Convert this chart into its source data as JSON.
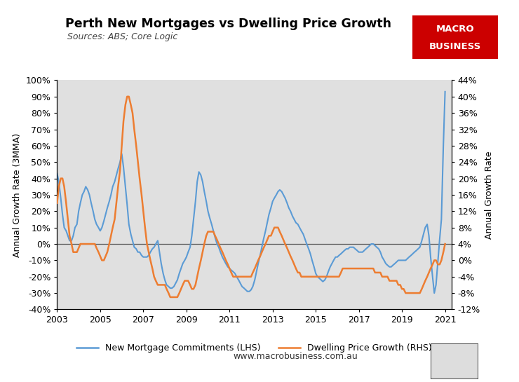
{
  "title": "Perth New Mortgages vs Dwelling Price Growth",
  "subtitle": "Sources: ABS; Core Logic",
  "ylabel_left": "Annual Growth Rate (3MMA)",
  "ylabel_right": "Annual Growth Rate",
  "ylim_left": [
    -40,
    100
  ],
  "ylim_right": [
    -12,
    44
  ],
  "yticks_left": [
    -40,
    -30,
    -20,
    -10,
    0,
    10,
    20,
    30,
    40,
    50,
    60,
    70,
    80,
    90,
    100
  ],
  "yticks_right": [
    -12,
    -8,
    -4,
    0,
    4,
    8,
    12,
    16,
    20,
    24,
    28,
    32,
    36,
    40,
    44
  ],
  "lhs_color": "#5B9BD5",
  "rhs_color": "#ED7D31",
  "background_color": "#E0E0E0",
  "zero_line_color": "#555555",
  "website": "www.macrobusiness.com.au",
  "legend_lhs": "New Mortgage Commitments (LHS)",
  "legend_rhs": "Dwelling Price Growth (RHS)",
  "macro_box_color": "#CC0000",
  "xticks": [
    2003,
    2005,
    2007,
    2009,
    2011,
    2013,
    2015,
    2017,
    2019,
    2021
  ],
  "xlim": [
    2003,
    2021.3
  ],
  "lhs_x": [
    2003.0,
    2003.08,
    2003.17,
    2003.25,
    2003.33,
    2003.42,
    2003.5,
    2003.58,
    2003.67,
    2003.75,
    2003.83,
    2003.92,
    2004.0,
    2004.08,
    2004.17,
    2004.25,
    2004.33,
    2004.42,
    2004.5,
    2004.58,
    2004.67,
    2004.75,
    2004.83,
    2004.92,
    2005.0,
    2005.08,
    2005.17,
    2005.25,
    2005.33,
    2005.42,
    2005.5,
    2005.58,
    2005.67,
    2005.75,
    2005.83,
    2005.92,
    2006.0,
    2006.08,
    2006.17,
    2006.25,
    2006.33,
    2006.42,
    2006.5,
    2006.58,
    2006.67,
    2006.75,
    2006.83,
    2006.92,
    2007.0,
    2007.08,
    2007.17,
    2007.25,
    2007.33,
    2007.42,
    2007.5,
    2007.58,
    2007.67,
    2007.75,
    2007.83,
    2007.92,
    2008.0,
    2008.08,
    2008.17,
    2008.25,
    2008.33,
    2008.42,
    2008.5,
    2008.58,
    2008.67,
    2008.75,
    2008.83,
    2008.92,
    2009.0,
    2009.08,
    2009.17,
    2009.25,
    2009.33,
    2009.42,
    2009.5,
    2009.58,
    2009.67,
    2009.75,
    2009.83,
    2009.92,
    2010.0,
    2010.08,
    2010.17,
    2010.25,
    2010.33,
    2010.42,
    2010.5,
    2010.58,
    2010.67,
    2010.75,
    2010.83,
    2010.92,
    2011.0,
    2011.08,
    2011.17,
    2011.25,
    2011.33,
    2011.42,
    2011.5,
    2011.58,
    2011.67,
    2011.75,
    2011.83,
    2011.92,
    2012.0,
    2012.08,
    2012.17,
    2012.25,
    2012.33,
    2012.42,
    2012.5,
    2012.58,
    2012.67,
    2012.75,
    2012.83,
    2012.92,
    2013.0,
    2013.08,
    2013.17,
    2013.25,
    2013.33,
    2013.42,
    2013.5,
    2013.58,
    2013.67,
    2013.75,
    2013.83,
    2013.92,
    2014.0,
    2014.08,
    2014.17,
    2014.25,
    2014.33,
    2014.42,
    2014.5,
    2014.58,
    2014.67,
    2014.75,
    2014.83,
    2014.92,
    2015.0,
    2015.08,
    2015.17,
    2015.25,
    2015.33,
    2015.42,
    2015.5,
    2015.58,
    2015.67,
    2015.75,
    2015.83,
    2015.92,
    2016.0,
    2016.08,
    2016.17,
    2016.25,
    2016.33,
    2016.42,
    2016.5,
    2016.58,
    2016.67,
    2016.75,
    2016.83,
    2016.92,
    2017.0,
    2017.08,
    2017.17,
    2017.25,
    2017.33,
    2017.42,
    2017.5,
    2017.58,
    2017.67,
    2017.75,
    2017.83,
    2017.92,
    2018.0,
    2018.08,
    2018.17,
    2018.25,
    2018.33,
    2018.42,
    2018.5,
    2018.58,
    2018.67,
    2018.75,
    2018.83,
    2018.92,
    2019.0,
    2019.08,
    2019.17,
    2019.25,
    2019.33,
    2019.42,
    2019.5,
    2019.58,
    2019.67,
    2019.75,
    2019.83,
    2019.92,
    2020.0,
    2020.08,
    2020.17,
    2020.25,
    2020.33,
    2020.42,
    2020.5,
    2020.58,
    2020.67,
    2020.75,
    2020.83,
    2020.92,
    2021.0
  ],
  "lhs_y": [
    43,
    38,
    28,
    18,
    10,
    8,
    5,
    2,
    2,
    5,
    10,
    12,
    20,
    25,
    30,
    32,
    35,
    33,
    30,
    25,
    20,
    15,
    12,
    10,
    8,
    10,
    14,
    18,
    22,
    26,
    30,
    35,
    38,
    42,
    46,
    50,
    55,
    47,
    35,
    24,
    12,
    6,
    2,
    -2,
    -3,
    -5,
    -5,
    -7,
    -8,
    -8,
    -8,
    -7,
    -5,
    -3,
    -2,
    0,
    2,
    -5,
    -12,
    -18,
    -22,
    -25,
    -26,
    -27,
    -27,
    -26,
    -24,
    -22,
    -18,
    -15,
    -12,
    -10,
    -8,
    -5,
    -2,
    5,
    15,
    26,
    38,
    44,
    42,
    38,
    32,
    26,
    20,
    16,
    12,
    8,
    4,
    0,
    -2,
    -5,
    -8,
    -10,
    -12,
    -14,
    -15,
    -16,
    -17,
    -18,
    -20,
    -22,
    -24,
    -26,
    -27,
    -28,
    -29,
    -29,
    -28,
    -26,
    -22,
    -17,
    -12,
    -7,
    -2,
    3,
    8,
    13,
    18,
    22,
    26,
    28,
    30,
    32,
    33,
    32,
    30,
    28,
    25,
    22,
    20,
    17,
    15,
    13,
    12,
    10,
    8,
    6,
    3,
    0,
    -3,
    -6,
    -10,
    -14,
    -18,
    -20,
    -21,
    -22,
    -23,
    -22,
    -20,
    -17,
    -14,
    -12,
    -10,
    -8,
    -8,
    -7,
    -6,
    -5,
    -4,
    -3,
    -3,
    -2,
    -2,
    -2,
    -3,
    -4,
    -5,
    -5,
    -5,
    -4,
    -3,
    -2,
    -1,
    0,
    0,
    -1,
    -2,
    -3,
    -5,
    -8,
    -10,
    -12,
    -13,
    -14,
    -14,
    -13,
    -12,
    -11,
    -10,
    -10,
    -10,
    -10,
    -10,
    -9,
    -8,
    -7,
    -6,
    -5,
    -4,
    -3,
    -2,
    2,
    6,
    10,
    12,
    5,
    -8,
    -20,
    -30,
    -25,
    -10,
    3,
    15,
    60,
    93
  ],
  "rhs_y": [
    14,
    18,
    20,
    20,
    18,
    14,
    10,
    6,
    4,
    2,
    2,
    2,
    3,
    4,
    4,
    4,
    4,
    4,
    4,
    4,
    4,
    4,
    3,
    2,
    1,
    0,
    0,
    1,
    2,
    4,
    6,
    8,
    10,
    14,
    18,
    22,
    28,
    34,
    38,
    40,
    40,
    38,
    36,
    32,
    28,
    24,
    20,
    16,
    12,
    8,
    4,
    2,
    0,
    -2,
    -4,
    -5,
    -6,
    -6,
    -6,
    -6,
    -6,
    -7,
    -8,
    -9,
    -9,
    -9,
    -9,
    -9,
    -8,
    -7,
    -6,
    -5,
    -5,
    -5,
    -6,
    -7,
    -7,
    -6,
    -4,
    -2,
    0,
    2,
    4,
    6,
    7,
    7,
    7,
    7,
    6,
    5,
    4,
    3,
    2,
    1,
    0,
    -1,
    -2,
    -3,
    -4,
    -4,
    -4,
    -4,
    -4,
    -4,
    -4,
    -4,
    -4,
    -4,
    -4,
    -3,
    -2,
    -1,
    0,
    1,
    2,
    3,
    4,
    5,
    6,
    6,
    7,
    8,
    8,
    8,
    7,
    6,
    5,
    4,
    3,
    2,
    1,
    0,
    -1,
    -2,
    -3,
    -3,
    -4,
    -4,
    -4,
    -4,
    -4,
    -4,
    -4,
    -4,
    -4,
    -4,
    -4,
    -4,
    -4,
    -4,
    -4,
    -4,
    -4,
    -4,
    -4,
    -4,
    -4,
    -4,
    -3,
    -2,
    -2,
    -2,
    -2,
    -2,
    -2,
    -2,
    -2,
    -2,
    -2,
    -2,
    -2,
    -2,
    -2,
    -2,
    -2,
    -2,
    -2,
    -3,
    -3,
    -3,
    -3,
    -4,
    -4,
    -4,
    -4,
    -5,
    -5,
    -5,
    -5,
    -5,
    -6,
    -6,
    -7,
    -7,
    -8,
    -8,
    -8,
    -8,
    -8,
    -8,
    -8,
    -8,
    -8,
    -7,
    -6,
    -5,
    -4,
    -3,
    -2,
    -1,
    0,
    0,
    -1,
    -1,
    0,
    2,
    4
  ]
}
